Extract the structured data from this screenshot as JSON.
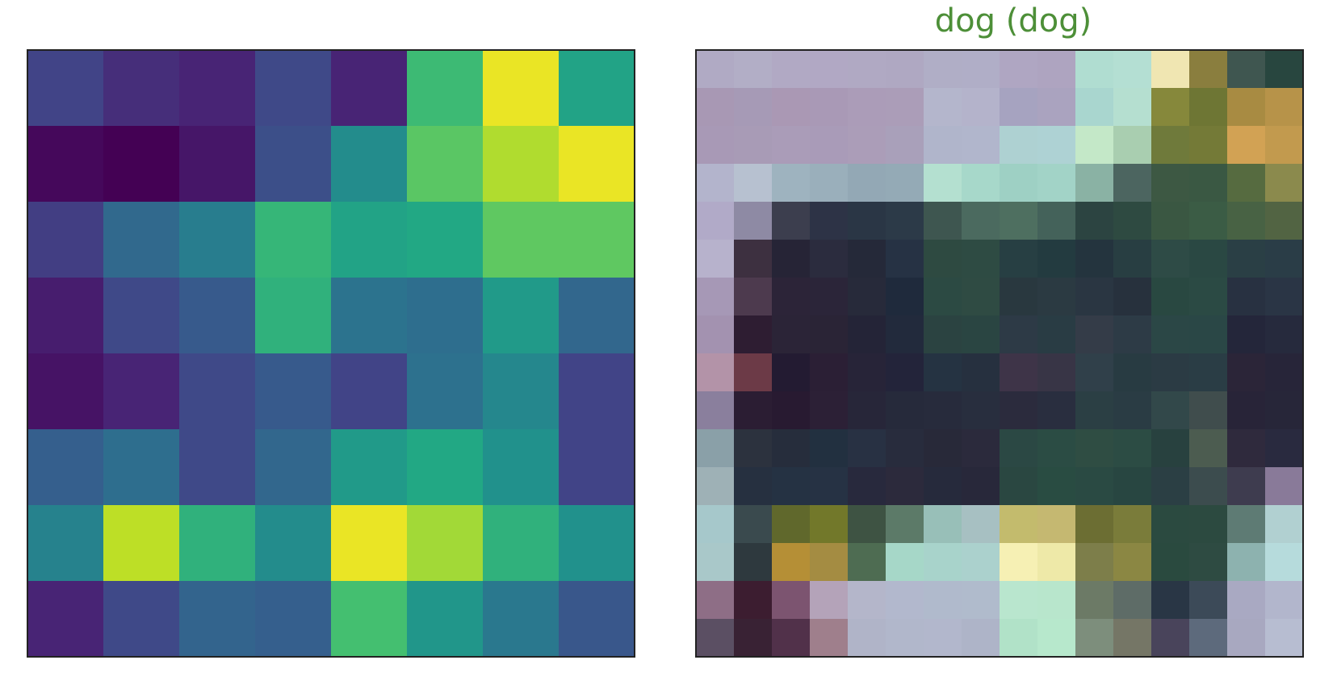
{
  "chart_data": [
    {
      "type": "heatmap",
      "colormap": "viridis",
      "title": "",
      "rows": 8,
      "cols": 8,
      "values": [
        [
          0.2,
          0.13,
          0.1,
          0.22,
          0.1,
          0.68,
          0.97,
          0.58
        ],
        [
          0.02,
          0.0,
          0.06,
          0.24,
          0.48,
          0.74,
          0.88,
          0.97
        ],
        [
          0.18,
          0.34,
          0.42,
          0.66,
          0.58,
          0.6,
          0.75,
          0.75
        ],
        [
          0.08,
          0.22,
          0.28,
          0.64,
          0.38,
          0.36,
          0.54,
          0.33
        ],
        [
          0.05,
          0.1,
          0.22,
          0.28,
          0.2,
          0.37,
          0.46,
          0.2
        ],
        [
          0.3,
          0.36,
          0.22,
          0.33,
          0.54,
          0.6,
          0.5,
          0.2
        ],
        [
          0.44,
          0.9,
          0.64,
          0.48,
          0.97,
          0.86,
          0.64,
          0.5
        ],
        [
          0.1,
          0.22,
          0.32,
          0.3,
          0.7,
          0.52,
          0.4,
          0.27
        ]
      ]
    },
    {
      "type": "heatmap",
      "colormap": "viridis-overlay",
      "title": "dog (dog)",
      "title_color": "#4d8f38",
      "rows": 16,
      "cols": 16,
      "cell_colors": [
        [
          "#b0aac4",
          "#b2aec6",
          "#b1a9c4",
          "#b1a8c4",
          "#b0a9c3",
          "#afa8c2",
          "#b0aec6",
          "#b0aec7",
          "#afa6c2",
          "#aea4c0",
          "#b0ddd1",
          "#b4dfd3",
          "#f0e6b2",
          "#8a7e3e",
          "#3f5650",
          "#28463f"
        ],
        [
          "#a898b4",
          "#a69ab6",
          "#aa98b4",
          "#a999b6",
          "#ab9cb8",
          "#ab9db8",
          "#b4b6cc",
          "#b4b3cb",
          "#a6a3c0",
          "#aaa3bf",
          "#a9d6cf",
          "#b5dfd0",
          "#86883b",
          "#6e7634",
          "#a88b42",
          "#b79349"
        ],
        [
          "#a899b6",
          "#a89bb6",
          "#aa9cb8",
          "#a99bb8",
          "#ab9db8",
          "#a9a0ba",
          "#b0b5cb",
          "#b1b6cc",
          "#aed1d2",
          "#aed2d4",
          "#c4e8c8",
          "#a9ceb0",
          "#6f7a3b",
          "#747a37",
          "#d2a254",
          "#c29a4e"
        ],
        [
          "#b3b4cc",
          "#b7c1d0",
          "#9eb3bf",
          "#9aafbb",
          "#93a8b5",
          "#94aab6",
          "#b4e0d0",
          "#a7d8ca",
          "#9ed0c4",
          "#a2d3c7",
          "#8ab2a4",
          "#4c6560",
          "#3d5843",
          "#3a5843",
          "#566b40",
          "#8b8a4d"
        ],
        [
          "#b1aac8",
          "#8e8aa4",
          "#3c3e4e",
          "#2d3346",
          "#2a3645",
          "#2c3a48",
          "#3e5650",
          "#4b6a5f",
          "#4e6f60",
          "#44625a",
          "#2c4441",
          "#2e4a41",
          "#3a5742",
          "#3b5c45",
          "#486244",
          "#526443"
        ],
        [
          "#b7b2cc",
          "#3d3040",
          "#262436",
          "#2b2c3e",
          "#252939",
          "#263244",
          "#2e4a41",
          "#2e4b43",
          "#273f43",
          "#233b40",
          "#24343e",
          "#283e42",
          "#2e4b46",
          "#2a4843",
          "#2a3f45",
          "#2a3d47"
        ],
        [
          "#a698b6",
          "#4d3a4e",
          "#2c2438",
          "#2b2539",
          "#272a3a",
          "#1f2a3c",
          "#2c4a43",
          "#2f4b43",
          "#29383f",
          "#2b3a42",
          "#2a3642",
          "#27313d",
          "#294841",
          "#2b4a44",
          "#283141",
          "#2a3545"
        ],
        [
          "#a392b0",
          "#2e1d32",
          "#2b2437",
          "#2a2436",
          "#242437",
          "#222a3c",
          "#2b4341",
          "#2a4542",
          "#2d3a46",
          "#293c44",
          "#343c48",
          "#2d3b46",
          "#2b4746",
          "#2a4746",
          "#24263a",
          "#262a3d"
        ],
        [
          "#b393a8",
          "#6c3a47",
          "#231b32",
          "#2b1f35",
          "#272438",
          "#23243a",
          "#253342",
          "#26303f",
          "#3e3448",
          "#383546",
          "#30404a",
          "#283b42",
          "#2b3b44",
          "#2a3d45",
          "#2b2538",
          "#272539"
        ],
        [
          "#8a7f9d",
          "#2b1d33",
          "#281a31",
          "#2c2036",
          "#272639",
          "#262a3b",
          "#272b3c",
          "#282e3e",
          "#2b2b3d",
          "#292e3f",
          "#2b3f44",
          "#2a3c44",
          "#32484a",
          "#404d4d",
          "#282438",
          "#272639"
        ],
        [
          "#8aa0a8",
          "#2c323e",
          "#262d3c",
          "#223040",
          "#283143",
          "#282c3d",
          "#282939",
          "#2b2a3c",
          "#2b4844",
          "#2b4c44",
          "#2f4d43",
          "#2c4c44",
          "#28413f",
          "#4c5c50",
          "#2f2a3d",
          "#292a3f"
        ],
        [
          "#9eb1b6",
          "#263040",
          "#253243",
          "#263244",
          "#28293d",
          "#2c2a3c",
          "#262a3c",
          "#28283a",
          "#2a4741",
          "#294c42",
          "#2a4a43",
          "#284641",
          "#2b3f44",
          "#3c4c4e",
          "#3e3c4f",
          "#897a99"
        ],
        [
          "#a6c8cb",
          "#3a4a4e",
          "#60682c",
          "#72782a",
          "#3e5343",
          "#5c7a68",
          "#98bfb8",
          "#a7c0c2",
          "#c3bb6d",
          "#c5b871",
          "#6c6e33",
          "#7a7c3a",
          "#2b4a40",
          "#2c4a40",
          "#5e7b74",
          "#b1d0d1"
        ],
        [
          "#a9c8c9",
          "#2e393e",
          "#b58f36",
          "#a48c42",
          "#4e6c52",
          "#a6d7c8",
          "#a8d3cb",
          "#abd1cd",
          "#f6f0b4",
          "#eee9a8",
          "#7d7e4a",
          "#8b8743",
          "#2a4a3f",
          "#2e4b42",
          "#8db2af",
          "#b6dbdc"
        ],
        [
          "#8e6e86",
          "#3c1d30",
          "#7c5470",
          "#b4a3b9",
          "#b4b6ca",
          "#b2b8cd",
          "#b0bacc",
          "#b0bbcc",
          "#b9e6ce",
          "#b8e6cc",
          "#6c7a66",
          "#5e6c67",
          "#293645",
          "#3c4a58",
          "#a9a9c2",
          "#b2b6cc"
        ],
        [
          "#5b4f63",
          "#392234",
          "#51314a",
          "#9f7f8c",
          "#b0b4c8",
          "#b1b7cb",
          "#b2b7cc",
          "#aeb4c8",
          "#b1e2c8",
          "#b7e8cc",
          "#7d8e7c",
          "#757666",
          "#49445b",
          "#5d6a7c",
          "#a8a8c0",
          "#b7bdd1"
        ]
      ]
    }
  ]
}
